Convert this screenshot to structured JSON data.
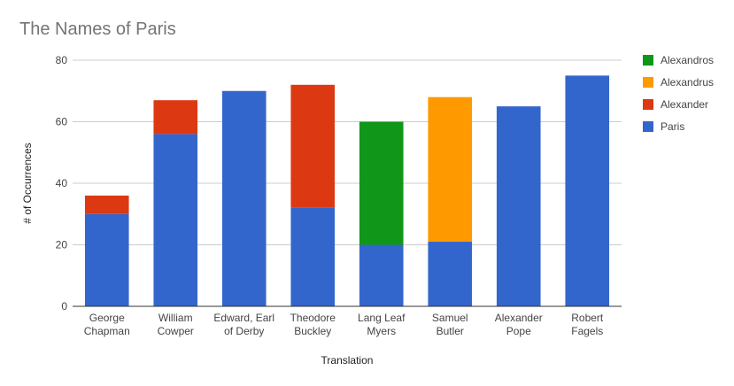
{
  "chart_data": {
    "type": "bar",
    "stacked": true,
    "title": "The Names of Paris",
    "xlabel": "Translation",
    "ylabel": "# of Occurrences",
    "ylim": [
      0,
      80
    ],
    "yticks": [
      0,
      20,
      40,
      60,
      80
    ],
    "grid": true,
    "legend_position": "right",
    "categories": [
      [
        "George",
        "Chapman"
      ],
      [
        "William",
        "Cowper"
      ],
      [
        "Edward, Earl",
        "of Derby"
      ],
      [
        "Theodore",
        "Buckley"
      ],
      [
        "Lang Leaf",
        "Myers"
      ],
      [
        "Samuel",
        "Butler"
      ],
      [
        "Alexander",
        "Pope"
      ],
      [
        "Robert",
        "Fagels"
      ]
    ],
    "series": [
      {
        "name": "Paris",
        "color": "#3366cc",
        "values": [
          30,
          56,
          70,
          32,
          20,
          21,
          65,
          75
        ]
      },
      {
        "name": "Alexander",
        "color": "#dc3912",
        "values": [
          6,
          11,
          0,
          40,
          0,
          0,
          0,
          0
        ]
      },
      {
        "name": "Alexandrus",
        "color": "#ff9900",
        "values": [
          0,
          0,
          0,
          0,
          0,
          47,
          0,
          0
        ]
      },
      {
        "name": "Alexandros",
        "color": "#109618",
        "values": [
          0,
          0,
          0,
          0,
          40,
          0,
          0,
          0
        ]
      }
    ],
    "legend_order": [
      "Alexandros",
      "Alexandrus",
      "Alexander",
      "Paris"
    ]
  }
}
